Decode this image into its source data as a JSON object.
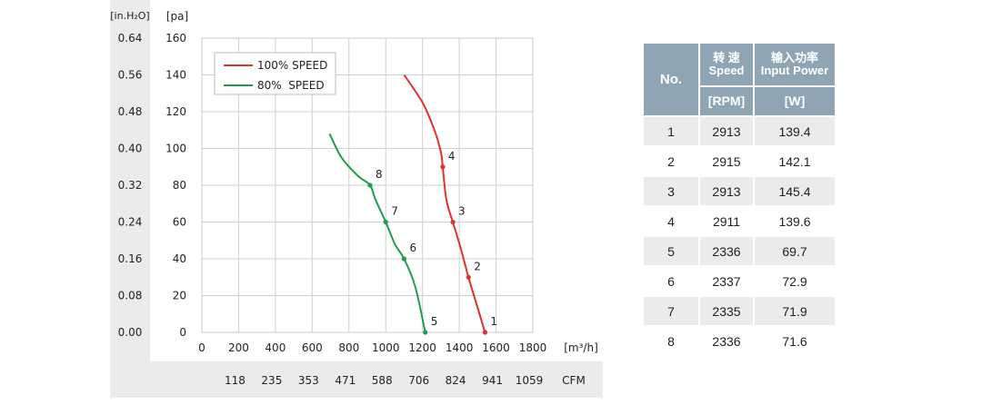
{
  "chart_data": {
    "type": "line",
    "title": "",
    "xlabel": "[m³/h]",
    "ylabel": "[pa]",
    "ylabel_secondary": "[in.H₂O]",
    "xlim": [
      0,
      1800
    ],
    "ylim": [
      0,
      160
    ],
    "grid": true,
    "legend_placement": "top-left",
    "x_ticks": [
      "0",
      "200",
      "400",
      "600",
      "800",
      "1000",
      "1200",
      "1400",
      "1600",
      "1800"
    ],
    "y_ticks": [
      "0",
      "20",
      "40",
      "60",
      "80",
      "100",
      "120",
      "140",
      "160"
    ],
    "y_ticks_inh2o": [
      "0.00",
      "0.08",
      "0.16",
      "0.24",
      "0.32",
      "0.40",
      "0.48",
      "0.56",
      "0.64"
    ],
    "cfm_ticks": [
      "118",
      "235",
      "353",
      "471",
      "588",
      "706",
      "824",
      "941",
      "1059"
    ],
    "cfm_label": "CFM",
    "series": [
      {
        "name": "100% SPEED",
        "color": "#e03030",
        "x": [
          1100,
          1200,
          1265,
          1300,
          1310,
          1330,
          1365,
          1410,
          1450,
          1510,
          1540
        ],
        "y": [
          140,
          125,
          110,
          98,
          90,
          72,
          60,
          45,
          30,
          10,
          0
        ],
        "points": [
          {
            "label": "1",
            "x": 1540,
            "y": 0
          },
          {
            "label": "2",
            "x": 1450,
            "y": 30
          },
          {
            "label": "3",
            "x": 1365,
            "y": 60
          },
          {
            "label": "4",
            "x": 1310,
            "y": 90
          }
        ]
      },
      {
        "name": "80%  SPEED",
        "color": "#1f9c4f",
        "x": [
          695,
          760,
          850,
          915,
          945,
          1000,
          1050,
          1100,
          1160,
          1215
        ],
        "y": [
          108,
          95,
          85,
          80,
          72,
          60,
          48,
          40,
          25,
          0
        ],
        "points": [
          {
            "label": "5",
            "x": 1215,
            "y": 0
          },
          {
            "label": "6",
            "x": 1100,
            "y": 40
          },
          {
            "label": "7",
            "x": 1000,
            "y": 60
          },
          {
            "label": "8",
            "x": 915,
            "y": 80
          }
        ]
      }
    ]
  },
  "table": {
    "header": {
      "no": "No.",
      "speed_cn": "转 速",
      "speed_en": "Speed",
      "power_cn": "输入功率",
      "power_en": "Input Power",
      "speed_unit": "[RPM]",
      "power_unit": "[W]"
    },
    "rows": [
      {
        "no": "1",
        "rpm": "2913",
        "power": "139.4"
      },
      {
        "no": "2",
        "rpm": "2915",
        "power": "142.1"
      },
      {
        "no": "3",
        "rpm": "2913",
        "power": "145.4"
      },
      {
        "no": "4",
        "rpm": "2911",
        "power": "139.6"
      },
      {
        "no": "5",
        "rpm": "2336",
        "power": "69.7"
      },
      {
        "no": "6",
        "rpm": "2337",
        "power": "72.9"
      },
      {
        "no": "7",
        "rpm": "2335",
        "power": "71.9"
      },
      {
        "no": "8",
        "rpm": "2336",
        "power": "71.6"
      }
    ]
  }
}
